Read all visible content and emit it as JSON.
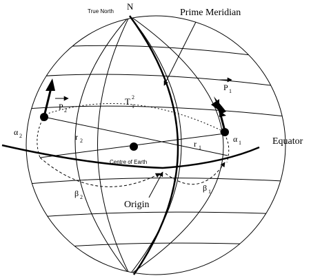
{
  "labels": {
    "north": "N",
    "true_north": "True North",
    "prime_meridian": "Prime Meridian",
    "equator": "Equator",
    "origin": "Origin",
    "centre": "Centre of Earth",
    "t_main": "T",
    "t_sup": "2",
    "t_sub": "1",
    "p2_main": "P",
    "p2_sub": "2",
    "p1_main": "P",
    "p1_sub": "1",
    "alpha2_main": "α",
    "alpha2_sub": "2",
    "alpha1_main": "α",
    "alpha1_sub": "1",
    "beta2_main": "β",
    "beta2_sub": "2",
    "beta1_main": "β",
    "beta1_sub": "1",
    "r2_main": "r",
    "r2_sub": "2",
    "r1_main": "r",
    "r1_sub": "1"
  }
}
